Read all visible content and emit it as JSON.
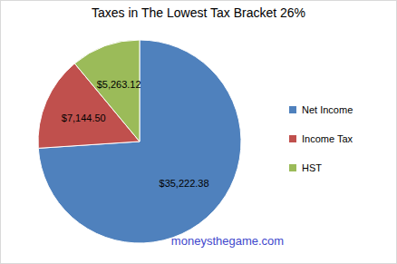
{
  "chart_data": {
    "type": "pie",
    "title": "Taxes in The Lowest Tax Bracket 26%",
    "categories": [
      "Net Income",
      "Income Tax",
      "HST"
    ],
    "values": [
      35222.38,
      7144.5,
      5263.12
    ],
    "value_labels": [
      "$35,222.38",
      "$7,144.50",
      "$5,263.12"
    ],
    "colors": [
      "#4f81bd",
      "#c0504d",
      "#9bbb59"
    ],
    "data_labels": true,
    "legend": "right",
    "annotations": [
      "moneysthegame.com"
    ]
  }
}
